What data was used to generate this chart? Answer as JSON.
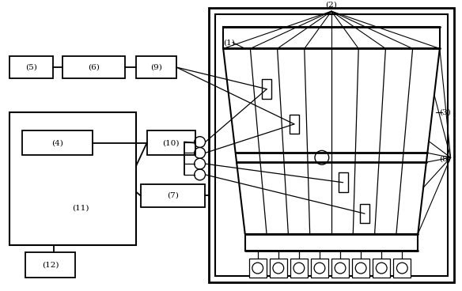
{
  "bg_color": "#ffffff",
  "line_color": "#000000",
  "fig_width": 5.84,
  "fig_height": 3.68,
  "dpi": 100
}
